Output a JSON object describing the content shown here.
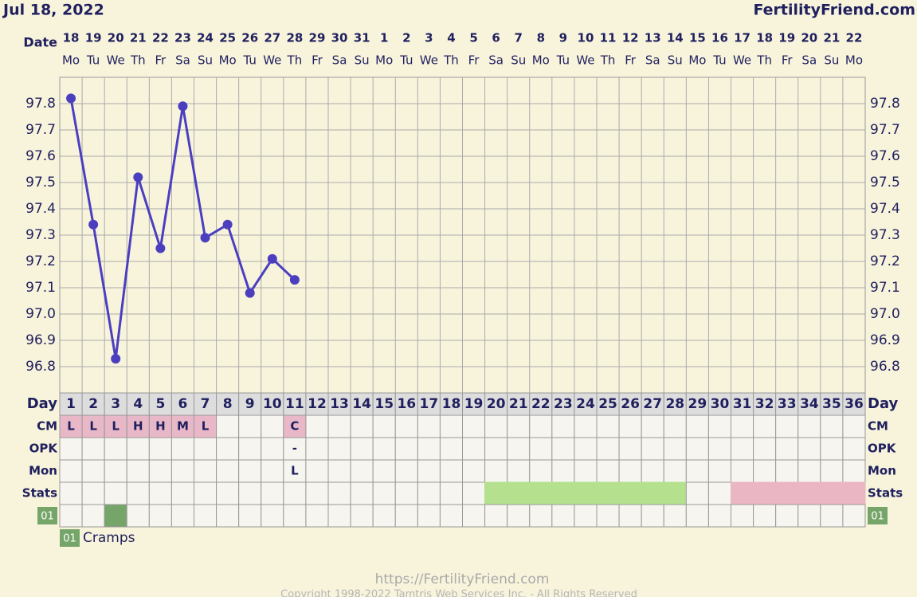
{
  "header": {
    "date": "Jul 18, 2022",
    "site": "FertilityFriend.com"
  },
  "chart_data": {
    "type": "line",
    "date_label": "Date",
    "dates": [
      "18",
      "19",
      "20",
      "21",
      "22",
      "23",
      "24",
      "25",
      "26",
      "27",
      "28",
      "29",
      "30",
      "31",
      "1",
      "2",
      "3",
      "4",
      "5",
      "6",
      "7",
      "8",
      "9",
      "10",
      "11",
      "12",
      "13",
      "14",
      "15",
      "16",
      "17",
      "18",
      "19",
      "20",
      "21",
      "22"
    ],
    "weekdays": [
      "Mo",
      "Tu",
      "We",
      "Th",
      "Fr",
      "Sa",
      "Su",
      "Mo",
      "Tu",
      "We",
      "Th",
      "Fr",
      "Sa",
      "Su",
      "Mo",
      "Tu",
      "We",
      "Th",
      "Fr",
      "Sa",
      "Su",
      "Mo",
      "Tu",
      "We",
      "Th",
      "Fr",
      "Sa",
      "Su",
      "Mo",
      "Tu",
      "We",
      "Th",
      "Fr",
      "Sa",
      "Su",
      "Mo"
    ],
    "day_label": "Day",
    "days": [
      1,
      2,
      3,
      4,
      5,
      6,
      7,
      8,
      9,
      10,
      11,
      12,
      13,
      14,
      15,
      16,
      17,
      18,
      19,
      20,
      21,
      22,
      23,
      24,
      25,
      26,
      27,
      28,
      29,
      30,
      31,
      32,
      33,
      34,
      35,
      36
    ],
    "series": [
      {
        "color": "#4b3fc0",
        "values": [
          97.82,
          97.34,
          96.83,
          97.52,
          97.25,
          97.79,
          97.29,
          97.34,
          97.08,
          97.21,
          97.13,
          null,
          null,
          null,
          null,
          null,
          null,
          null,
          null,
          null,
          null,
          null,
          null,
          null,
          null,
          null,
          null,
          null,
          null,
          null,
          null,
          null,
          null,
          null,
          null,
          null
        ]
      }
    ],
    "ylim": [
      96.7,
      97.9
    ],
    "yticks": [
      96.8,
      96.9,
      {
        "value": 97,
        "label": "97.0"
      },
      97.1,
      97.2,
      97.3,
      97.4,
      97.5,
      97.6,
      97.7,
      97.8
    ],
    "rows": [
      {
        "label": "CM",
        "color": "#e8b7c8",
        "values": [
          "L",
          "L",
          "L",
          "H",
          "H",
          "M",
          "L",
          null,
          null,
          null,
          "C",
          null,
          null,
          null,
          null,
          null,
          null,
          null,
          null,
          null,
          null,
          null,
          null,
          null,
          null,
          null,
          null,
          null,
          null,
          null,
          null,
          null,
          null,
          null,
          null,
          null
        ]
      },
      {
        "label": "OPK",
        "values": [
          null,
          null,
          null,
          null,
          null,
          null,
          null,
          null,
          null,
          null,
          "-",
          null,
          null,
          null,
          null,
          null,
          null,
          null,
          null,
          null,
          null,
          null,
          null,
          null,
          null,
          null,
          null,
          null,
          null,
          null,
          null,
          null,
          null,
          null,
          null,
          null
        ]
      },
      {
        "label": "Mon",
        "values": [
          null,
          null,
          null,
          null,
          null,
          null,
          null,
          null,
          null,
          null,
          "L",
          null,
          null,
          null,
          null,
          null,
          null,
          null,
          null,
          null,
          null,
          null,
          null,
          null,
          null,
          null,
          null,
          null,
          null,
          null,
          null,
          null,
          null,
          null,
          null,
          null
        ]
      }
    ],
    "stats": {
      "label": "Stats",
      "colors": [
        null,
        null,
        null,
        null,
        null,
        null,
        null,
        null,
        null,
        null,
        null,
        null,
        null,
        null,
        null,
        null,
        null,
        null,
        null,
        "#b5e18f",
        "#b5e18f",
        "#b5e18f",
        "#b5e18f",
        "#b5e18f",
        "#b5e18f",
        "#b5e18f",
        "#b5e18f",
        "#b5e18f",
        null,
        null,
        "#ebb6c4",
        "#ebb6c4",
        "#ebb6c4",
        "#ebb6c4",
        "#ebb6c4",
        "#ebb6c4"
      ]
    },
    "symptom": {
      "code": "01",
      "name": "Cramps",
      "color": "#76a56a",
      "days": [
        3
      ]
    }
  },
  "footer": {
    "url": "https://FertilityFriend.com",
    "copyright": "Copyright 1998-2022 Tamtris Web Services Inc. - All Rights Reserved"
  }
}
